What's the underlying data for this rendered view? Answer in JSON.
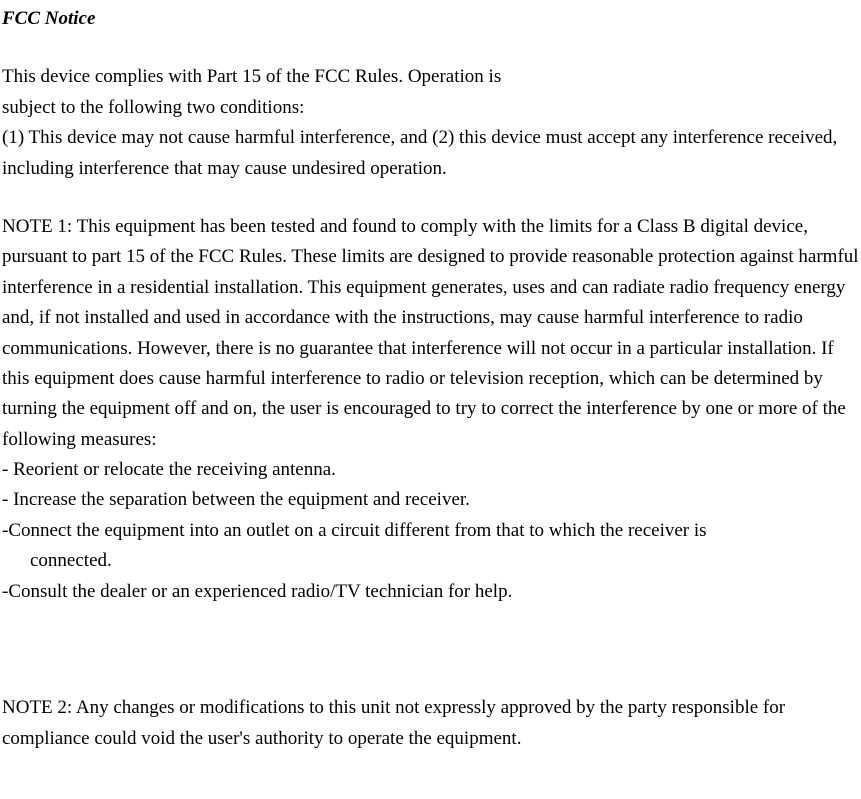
{
  "title": "FCC Notice",
  "intro": {
    "line1": "This device complies with Part 15 of the FCC Rules. Operation is",
    "line2": "subject to the following two conditions:",
    "line3": "(1) This device may not cause harmful interference, and (2) this device must accept any interference received, including interference that may cause undesired operation."
  },
  "note1": {
    "body": "NOTE 1: This equipment has been tested and found to comply with the limits for a Class B digital device, pursuant to part 15 of the FCC Rules. These limits are designed to provide reasonable protection against harmful interference in a residential installation. This equipment generates, uses and can radiate radio frequency energy and, if not installed and used in accordance with the instructions, may cause harmful interference to radio communications. However, there is no guarantee that interference will not occur in a particular installation. If this equipment does cause harmful interference to radio or television reception, which can be determined by turning the equipment off and on, the user is encouraged to try to correct the interference by one or more of the following measures:",
    "bullet1": "- Reorient or relocate the receiving antenna.",
    "bullet2": "- Increase the separation between the equipment and receiver.",
    "bullet3a": "-Connect the equipment into an outlet on a circuit different from that to which the receiver is",
    "bullet3b": "connected.",
    "bullet4": "-Consult the dealer or an experienced radio/TV technician for help."
  },
  "note2": "NOTE 2: Any changes or modifications to this unit not expressly approved by the party responsible for compliance could void the user's authority to operate the equipment."
}
